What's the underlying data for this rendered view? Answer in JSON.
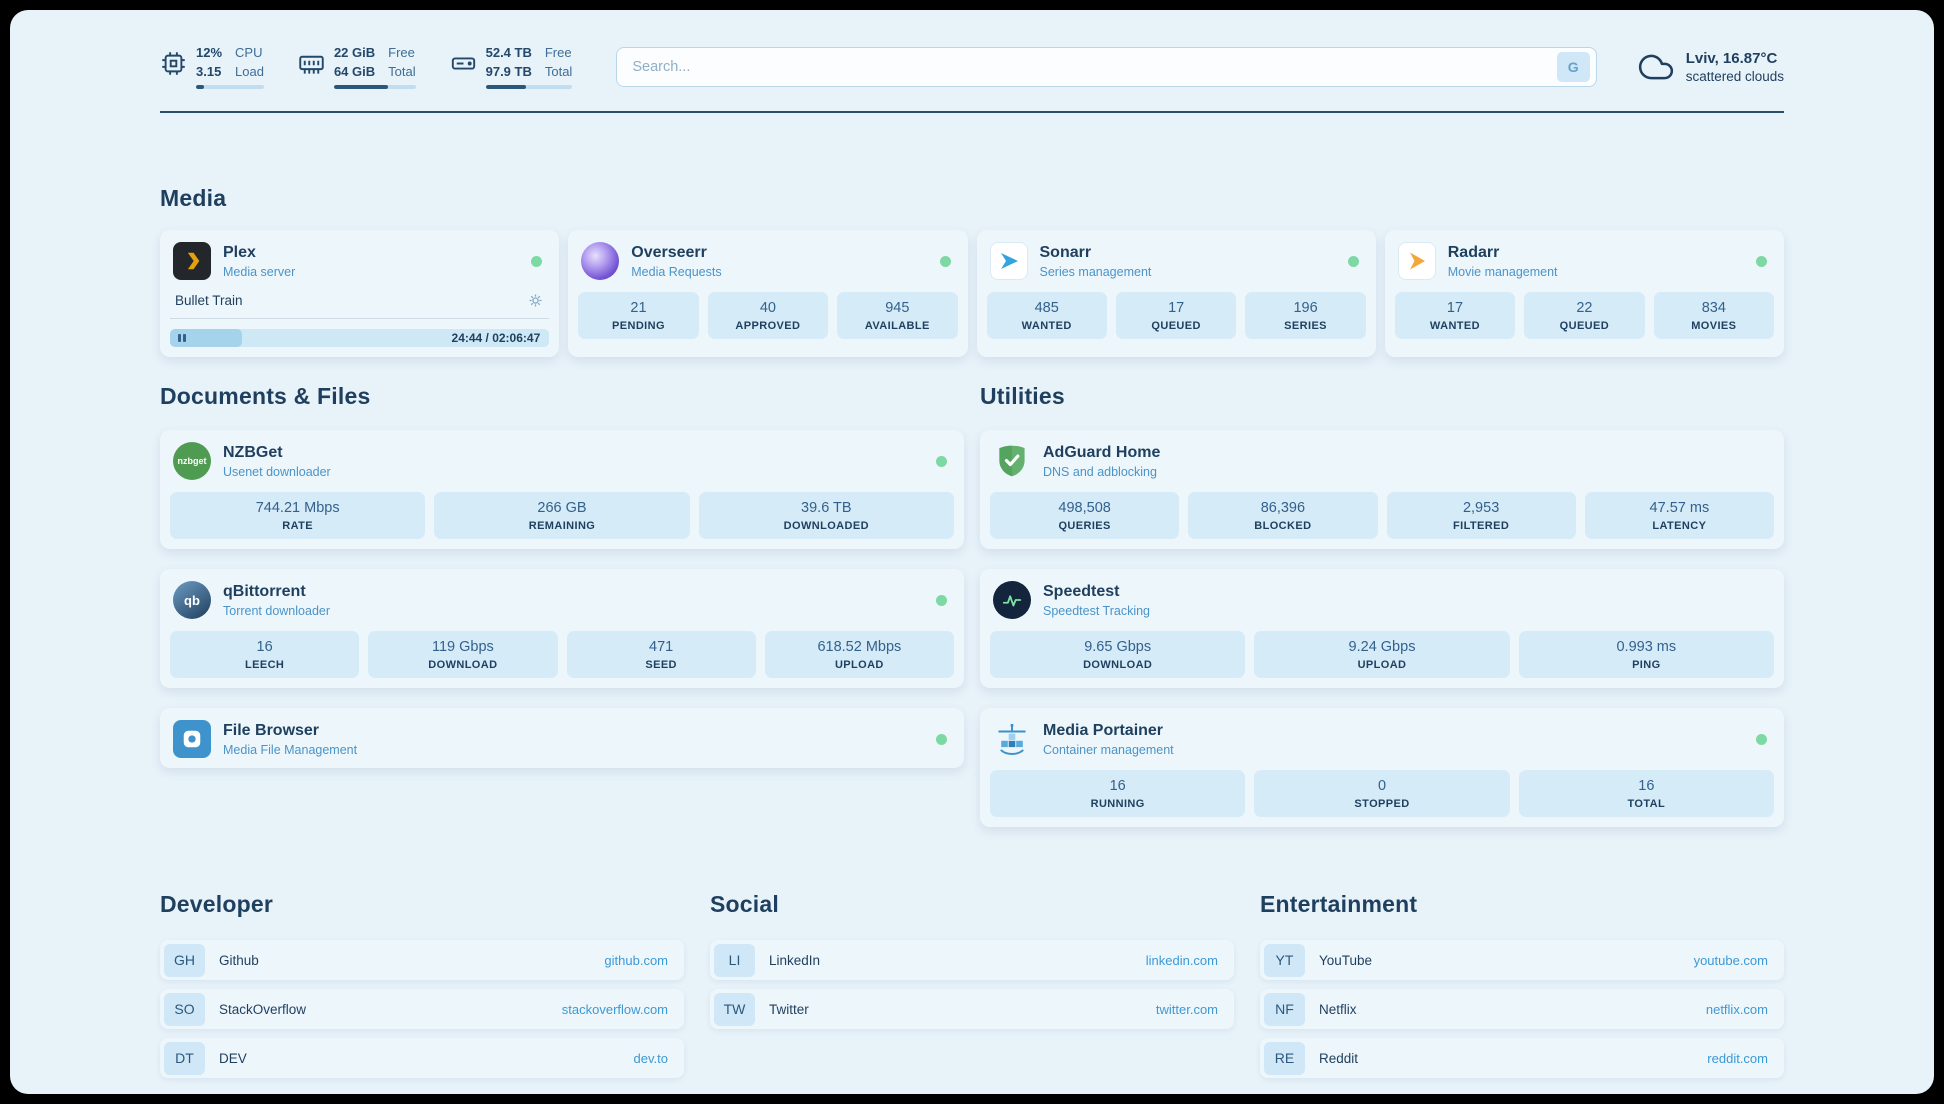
{
  "topbar": {
    "resources": [
      {
        "icon": "cpu-icon",
        "value1": "12%",
        "label1": "CPU",
        "value2": "3.15",
        "label2": "Load",
        "percent": 12
      },
      {
        "icon": "memory-icon",
        "value1": "22 GiB",
        "label1": "Free",
        "value2": "64 GiB",
        "label2": "Total",
        "percent": 66
      },
      {
        "icon": "disk-icon",
        "value1": "52.4 TB",
        "label1": "Free",
        "value2": "97.9 TB",
        "label2": "Total",
        "percent": 47
      }
    ],
    "search": {
      "placeholder": "Search...",
      "button_label": "G"
    },
    "weather": {
      "icon": "cloud-icon",
      "location": "Lviv, 16.87°C",
      "condition": "scattered clouds"
    }
  },
  "media": {
    "heading": "Media",
    "plex": {
      "title": "Plex",
      "subtitle": "Media server",
      "now_playing": "Bullet Train",
      "time": "24:44 / 02:06:47",
      "progress_percent": 19
    },
    "overseerr": {
      "title": "Overseerr",
      "subtitle": "Media Requests",
      "stats": [
        {
          "value": "21",
          "label": "PENDING"
        },
        {
          "value": "40",
          "label": "APPROVED"
        },
        {
          "value": "945",
          "label": "AVAILABLE"
        }
      ]
    },
    "sonarr": {
      "title": "Sonarr",
      "subtitle": "Series management",
      "stats": [
        {
          "value": "485",
          "label": "WANTED"
        },
        {
          "value": "17",
          "label": "QUEUED"
        },
        {
          "value": "196",
          "label": "SERIES"
        }
      ]
    },
    "radarr": {
      "title": "Radarr",
      "subtitle": "Movie management",
      "stats": [
        {
          "value": "17",
          "label": "WANTED"
        },
        {
          "value": "22",
          "label": "QUEUED"
        },
        {
          "value": "834",
          "label": "MOVIES"
        }
      ]
    }
  },
  "documents": {
    "heading": "Documents & Files",
    "nzbget": {
      "title": "NZBGet",
      "subtitle": "Usenet downloader",
      "icon_text": "nzbget",
      "stats": [
        {
          "value": "744.21 Mbps",
          "label": "RATE"
        },
        {
          "value": "266 GB",
          "label": "REMAINING"
        },
        {
          "value": "39.6 TB",
          "label": "DOWNLOADED"
        }
      ]
    },
    "qbittorrent": {
      "title": "qBittorrent",
      "subtitle": "Torrent downloader",
      "icon_text": "qb",
      "stats": [
        {
          "value": "16",
          "label": "LEECH"
        },
        {
          "value": "119 Gbps",
          "label": "DOWNLOAD"
        },
        {
          "value": "471",
          "label": "SEED"
        },
        {
          "value": "618.52 Mbps",
          "label": "UPLOAD"
        }
      ]
    },
    "filebrowser": {
      "title": "File Browser",
      "subtitle": "Media File Management"
    }
  },
  "utilities": {
    "heading": "Utilities",
    "adguard": {
      "title": "AdGuard Home",
      "subtitle": "DNS and adblocking",
      "stats": [
        {
          "value": "498,508",
          "label": "QUERIES"
        },
        {
          "value": "86,396",
          "label": "BLOCKED"
        },
        {
          "value": "2,953",
          "label": "FILTERED"
        },
        {
          "value": "47.57 ms",
          "label": "LATENCY"
        }
      ]
    },
    "speedtest": {
      "title": "Speedtest",
      "subtitle": "Speedtest Tracking",
      "stats": [
        {
          "value": "9.65 Gbps",
          "label": "DOWNLOAD"
        },
        {
          "value": "9.24 Gbps",
          "label": "UPLOAD"
        },
        {
          "value": "0.993 ms",
          "label": "PING"
        }
      ]
    },
    "portainer": {
      "title": "Media Portainer",
      "subtitle": "Container management",
      "stats": [
        {
          "value": "16",
          "label": "RUNNING"
        },
        {
          "value": "0",
          "label": "STOPPED"
        },
        {
          "value": "16",
          "label": "TOTAL"
        }
      ]
    }
  },
  "bookmarks": [
    {
      "heading": "Developer",
      "items": [
        {
          "abbr": "GH",
          "name": "Github",
          "link": "github.com"
        },
        {
          "abbr": "SO",
          "name": "StackOverflow",
          "link": "stackoverflow.com"
        },
        {
          "abbr": "DT",
          "name": "DEV",
          "link": "dev.to"
        }
      ]
    },
    {
      "heading": "Social",
      "items": [
        {
          "abbr": "LI",
          "name": "LinkedIn",
          "link": "linkedin.com"
        },
        {
          "abbr": "TW",
          "name": "Twitter",
          "link": "twitter.com"
        }
      ]
    },
    {
      "heading": "Entertainment",
      "items": [
        {
          "abbr": "YT",
          "name": "YouTube",
          "link": "youtube.com"
        },
        {
          "abbr": "NF",
          "name": "Netflix",
          "link": "netflix.com"
        },
        {
          "abbr": "RE",
          "name": "Reddit",
          "link": "reddit.com"
        }
      ]
    }
  ],
  "colors": {
    "background": "#e8f2f9",
    "card": "#edf6fb",
    "chip": "#d6ebf8",
    "text_primary": "#1e3f5e",
    "text_subtitle": "#4a94c9",
    "link": "#3d99d5",
    "status_online": "#7cd9a4"
  }
}
